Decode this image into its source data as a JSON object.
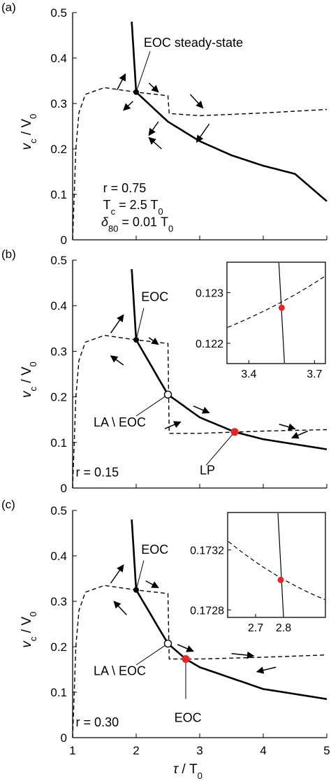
{
  "chart_data": [
    {
      "panel_label": "(a)",
      "type": "line",
      "xlim": [
        1,
        5
      ],
      "ylim": [
        0,
        0.5
      ],
      "yticks": [
        "0",
        "0.1",
        "0.2",
        "0.3",
        "0.4",
        "0.5"
      ],
      "ylabel_main": "v",
      "ylabel_sub": "c",
      "ylabel_rest": " / V",
      "ylabel_sub2": "0",
      "series": [
        {
          "style": "solid",
          "points": [
            [
              1.93,
              0.48
            ],
            [
              2.0,
              0.325
            ],
            [
              2.5,
              0.26
            ],
            [
              3.0,
              0.217
            ],
            [
              3.5,
              0.186
            ],
            [
              4.0,
              0.163
            ],
            [
              4.5,
              0.145
            ],
            [
              5.0,
              0.085
            ]
          ]
        },
        {
          "style": "dashed",
          "points": [
            [
              1.0,
              0.0
            ],
            [
              1.05,
              0.2
            ],
            [
              1.1,
              0.28
            ],
            [
              1.2,
              0.32
            ],
            [
              1.5,
              0.335
            ],
            [
              2.0,
              0.325
            ],
            [
              2.5,
              0.317
            ],
            [
              2.52,
              0.278
            ],
            [
              3.0,
              0.273
            ],
            [
              4.0,
              0.279
            ],
            [
              5.0,
              0.287
            ]
          ]
        }
      ],
      "points": [
        {
          "x": 2.0,
          "y": 0.325,
          "style": "filled-black"
        }
      ],
      "arrows": [
        {
          "x0": 1.7,
          "y0": 0.33,
          "x1": 1.83,
          "y1": 0.365
        },
        {
          "x0": 2.2,
          "y0": 0.345,
          "x1": 2.35,
          "y1": 0.325
        },
        {
          "x0": 1.95,
          "y0": 0.305,
          "x1": 1.8,
          "y1": 0.285
        },
        {
          "x0": 2.35,
          "y0": 0.26,
          "x1": 2.2,
          "y1": 0.23
        },
        {
          "x0": 2.85,
          "y0": 0.32,
          "x1": 3.05,
          "y1": 0.29
        },
        {
          "x0": 3.15,
          "y0": 0.255,
          "x1": 2.95,
          "y1": 0.215
        },
        {
          "x0": 2.4,
          "y0": 0.2,
          "x1": 2.2,
          "y1": 0.225
        }
      ],
      "annotations": [
        {
          "text": "EOC steady-state",
          "x": 2.12,
          "y": 0.425
        },
        {
          "text": "r = 0.75",
          "x": 1.48,
          "y": 0.105
        },
        {
          "text": "Tc = 2.5 T0",
          "x": 1.48,
          "y": 0.068,
          "parts": [
            "T",
            "c",
            " = 2.5 T",
            "0"
          ]
        },
        {
          "text": "δ80 = 0.01 T0",
          "x": 1.45,
          "y": 0.03,
          "parts": [
            "δ",
            "80",
            " = 0.01 T",
            "0"
          ]
        }
      ]
    },
    {
      "panel_label": "(b)",
      "type": "line",
      "xlim": [
        1,
        5
      ],
      "ylim": [
        0,
        0.5
      ],
      "yticks": [
        "0",
        "0.1",
        "0.2",
        "0.3",
        "0.4",
        "0.5"
      ],
      "series": [
        {
          "style": "solid",
          "points": [
            [
              1.93,
              0.48
            ],
            [
              2.0,
              0.325
            ],
            [
              2.5,
              0.205
            ],
            [
              3.0,
              0.155
            ],
            [
              3.55,
              0.123
            ],
            [
              4.0,
              0.107
            ],
            [
              5.0,
              0.085
            ]
          ]
        },
        {
          "style": "dashed",
          "points": [
            [
              1.0,
              0.0
            ],
            [
              1.05,
              0.2
            ],
            [
              1.1,
              0.28
            ],
            [
              1.2,
              0.32
            ],
            [
              1.5,
              0.335
            ],
            [
              2.0,
              0.325
            ],
            [
              2.5,
              0.317
            ],
            [
              2.52,
              0.12
            ],
            [
              3.0,
              0.12
            ],
            [
              4.0,
              0.125
            ],
            [
              5.0,
              0.128
            ]
          ]
        }
      ],
      "points": [
        {
          "x": 2.0,
          "y": 0.325,
          "style": "filled-black"
        },
        {
          "x": 2.5,
          "y": 0.205,
          "style": "open"
        },
        {
          "x": 3.55,
          "y": 0.123,
          "style": "red"
        }
      ],
      "arrows": [
        {
          "x0": 1.6,
          "y0": 0.34,
          "x1": 1.8,
          "y1": 0.38
        },
        {
          "x0": 2.2,
          "y0": 0.33,
          "x1": 2.35,
          "y1": 0.315
        },
        {
          "x0": 1.8,
          "y0": 0.27,
          "x1": 1.6,
          "y1": 0.29
        },
        {
          "x0": 2.9,
          "y0": 0.18,
          "x1": 3.15,
          "y1": 0.165
        },
        {
          "x0": 2.45,
          "y0": 0.13,
          "x1": 2.7,
          "y1": 0.145
        },
        {
          "x0": 4.25,
          "y0": 0.14,
          "x1": 4.5,
          "y1": 0.13
        },
        {
          "x0": 4.7,
          "y0": 0.125,
          "x1": 4.45,
          "y1": 0.11
        }
      ],
      "annotations": [
        {
          "text": "EOC",
          "x": 2.08,
          "y": 0.41
        },
        {
          "text": "LA \\ EOC",
          "x": 1.33,
          "y": 0.135
        },
        {
          "text": "LP",
          "x": 3.0,
          "y": 0.03
        },
        {
          "text": "r = 0.15",
          "x": 1.05,
          "y": 0.025
        }
      ],
      "inset": {
        "xlim": [
          3.3,
          3.75
        ],
        "ylim": [
          0.1216,
          0.1236
        ],
        "xticks": [
          "3.4",
          "3.7"
        ],
        "xtick_values": [
          3.4,
          3.7
        ],
        "yticks": [
          "0.122",
          "0.123"
        ],
        "ytick_values": [
          0.122,
          0.123
        ],
        "point": {
          "x": 3.55,
          "y": 0.1227
        }
      }
    },
    {
      "panel_label": "(c)",
      "type": "line",
      "xlim": [
        1,
        5
      ],
      "ylim": [
        0,
        0.5
      ],
      "yticks": [
        "0",
        "0.1",
        "0.2",
        "0.3",
        "0.4",
        "0.5"
      ],
      "xticks": [
        "1",
        "2",
        "3",
        "4",
        "5"
      ],
      "xlabel_main": "τ",
      "xlabel_rest": " / T",
      "xlabel_sub": "0",
      "series": [
        {
          "style": "solid",
          "points": [
            [
              1.93,
              0.48
            ],
            [
              2.0,
              0.325
            ],
            [
              2.5,
              0.207
            ],
            [
              2.78,
              0.173
            ],
            [
              3.0,
              0.155
            ],
            [
              4.0,
              0.107
            ],
            [
              5.0,
              0.085
            ]
          ]
        },
        {
          "style": "dashed",
          "points": [
            [
              1.0,
              0.0
            ],
            [
              1.05,
              0.2
            ],
            [
              1.1,
              0.28
            ],
            [
              1.2,
              0.32
            ],
            [
              1.5,
              0.335
            ],
            [
              2.0,
              0.325
            ],
            [
              2.5,
              0.317
            ],
            [
              2.52,
              0.173
            ],
            [
              3.0,
              0.173
            ],
            [
              4.0,
              0.177
            ],
            [
              5.0,
              0.182
            ]
          ]
        }
      ],
      "points": [
        {
          "x": 2.0,
          "y": 0.325,
          "style": "filled-black"
        },
        {
          "x": 2.5,
          "y": 0.207,
          "style": "open"
        },
        {
          "x": 2.78,
          "y": 0.173,
          "style": "red"
        }
      ],
      "arrows": [
        {
          "x0": 1.6,
          "y0": 0.34,
          "x1": 1.8,
          "y1": 0.38
        },
        {
          "x0": 2.15,
          "y0": 0.345,
          "x1": 2.35,
          "y1": 0.33
        },
        {
          "x0": 1.85,
          "y0": 0.27,
          "x1": 1.65,
          "y1": 0.3
        },
        {
          "x0": 2.65,
          "y0": 0.205,
          "x1": 2.9,
          "y1": 0.19
        },
        {
          "x0": 3.5,
          "y0": 0.185,
          "x1": 3.85,
          "y1": 0.18
        },
        {
          "x0": 4.2,
          "y0": 0.155,
          "x1": 3.9,
          "y1": 0.145
        }
      ],
      "annotations": [
        {
          "text": "EOC",
          "x": 2.08,
          "y": 0.405
        },
        {
          "text": "LA \\ EOC",
          "x": 1.33,
          "y": 0.138
        },
        {
          "text": "EOC",
          "x": 2.6,
          "y": 0.035
        },
        {
          "text": "r = 0.30",
          "x": 1.05,
          "y": 0.025
        }
      ],
      "inset": {
        "xlim": [
          2.6,
          2.95
        ],
        "ylim": [
          0.17275,
          0.17345
        ],
        "xticks": [
          "2.7",
          "2.8"
        ],
        "xtick_values": [
          2.7,
          2.8
        ],
        "yticks": [
          "0.1728",
          "0.1732"
        ],
        "ytick_values": [
          0.1728,
          0.1732
        ],
        "point": {
          "x": 2.79,
          "y": 0.173
        }
      }
    }
  ]
}
